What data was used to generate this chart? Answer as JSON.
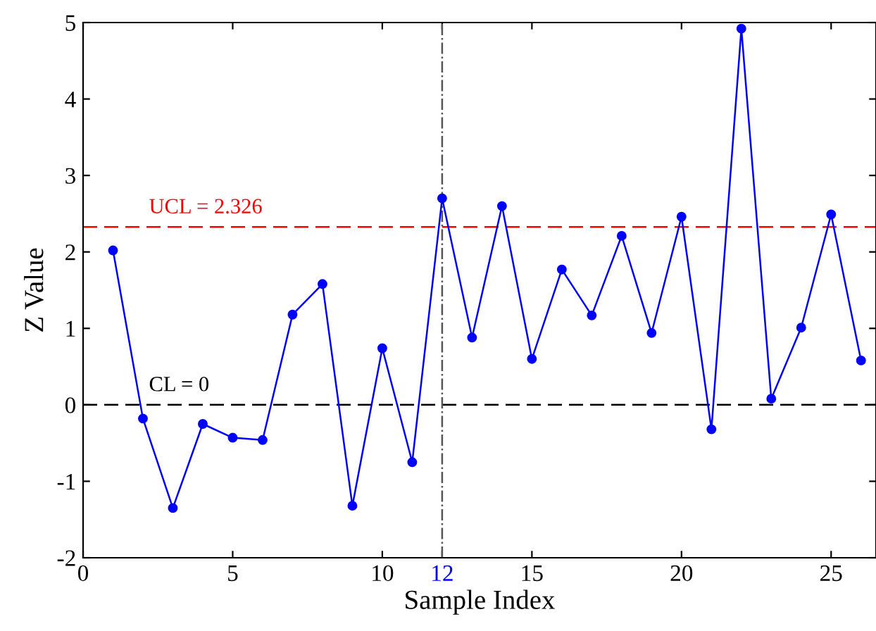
{
  "chart_data": {
    "type": "line",
    "xlabel": "Sample Index",
    "ylabel": "Z Value",
    "x": [
      1,
      2,
      3,
      4,
      5,
      6,
      7,
      8,
      9,
      10,
      11,
      12,
      13,
      14,
      15,
      16,
      17,
      18,
      19,
      20,
      21,
      22,
      23,
      24,
      25,
      26
    ],
    "series": [
      {
        "color": "#0000ff",
        "values": [
          2.02,
          -0.18,
          -1.35,
          -0.25,
          -0.43,
          -0.46,
          1.18,
          1.58,
          -1.32,
          0.74,
          -0.75,
          2.7,
          0.88,
          2.6,
          0.6,
          1.77,
          1.17,
          2.21,
          0.94,
          2.46,
          -0.32,
          4.92,
          0.08,
          1.01,
          2.49,
          0.58
        ]
      }
    ],
    "marker": "circle",
    "line_style": "solid",
    "xlim": [
      0,
      26.5
    ],
    "xticks": [
      0,
      5,
      10,
      12,
      15,
      20,
      25
    ],
    "ylim": [
      -2,
      5
    ],
    "yticks": [
      -2,
      -1,
      0,
      1,
      2,
      3,
      4,
      5
    ],
    "ref_lines": [
      {
        "axis": "y",
        "value": 2.326,
        "label": "UCL = 2.326",
        "color": "#ff0000",
        "line_style": "dashed"
      },
      {
        "axis": "y",
        "value": 0,
        "label": "CL = 0",
        "color": "#000000",
        "line_style": "dashed"
      },
      {
        "axis": "x",
        "value": 12,
        "label": null,
        "color": "#555555",
        "line_style": "dashdot"
      }
    ],
    "grid": false,
    "legend": false
  }
}
